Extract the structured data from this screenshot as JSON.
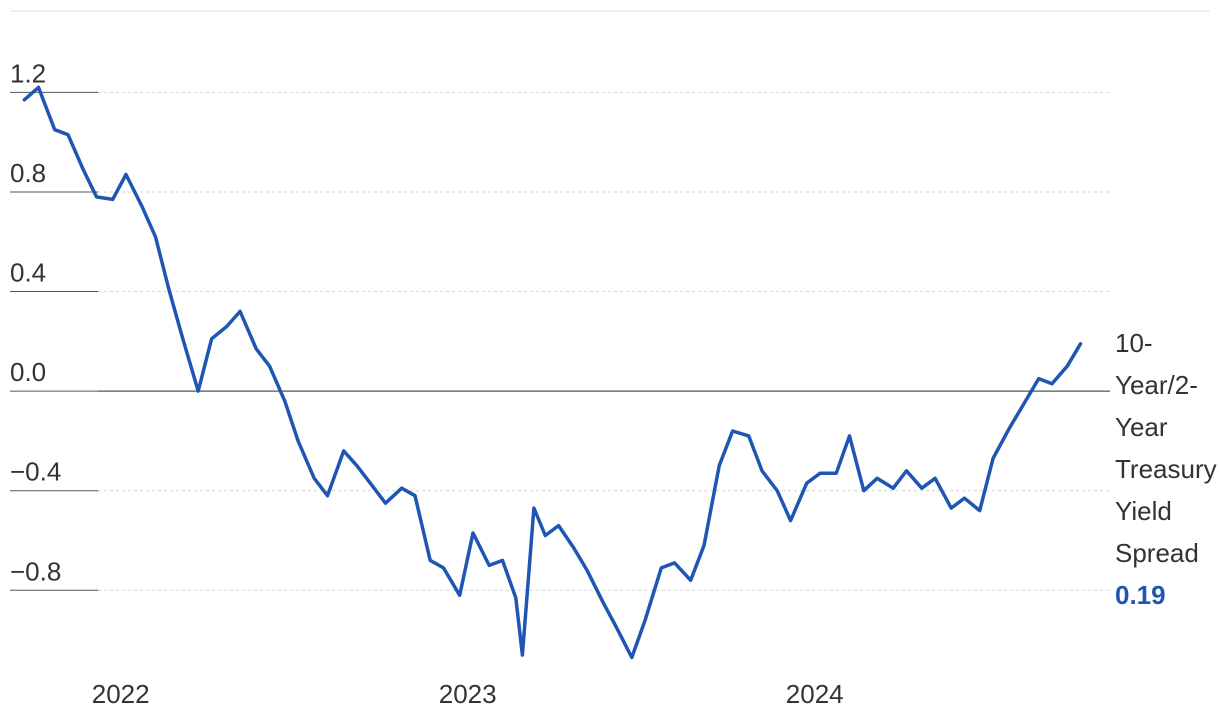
{
  "chart_data": {
    "type": "line",
    "title": "",
    "xlabel": "",
    "ylabel": "",
    "ylim": [
      -1.1,
      1.35
    ],
    "xlim": [
      "2021-09-15",
      "2024-11-15"
    ],
    "grid": true,
    "y_ticks": [
      {
        "value": 1.2,
        "label": "1.2"
      },
      {
        "value": 0.8,
        "label": "0.8"
      },
      {
        "value": 0.4,
        "label": "0.4"
      },
      {
        "value": 0.0,
        "label": "0.0"
      },
      {
        "value": -0.4,
        "label": "−0.4"
      },
      {
        "value": -0.8,
        "label": "−0.8"
      }
    ],
    "x_ticks": [
      {
        "value": "2022-01-01",
        "label": "2022"
      },
      {
        "value": "2023-01-01",
        "label": "2023"
      },
      {
        "value": "2024-01-01",
        "label": "2024"
      }
    ],
    "series": [
      {
        "name": "10-Year/2-Year Treasury Yield Spread",
        "label_lines": [
          "10-",
          "Year/2-",
          "Year",
          "Treasury",
          "Yield",
          "Spread"
        ],
        "last_value_label": "0.19",
        "color": "#1f56b3",
        "x": [
          "2021-09-30",
          "2021-10-15",
          "2021-11-01",
          "2021-11-15",
          "2021-12-01",
          "2021-12-15",
          "2022-01-01",
          "2022-01-15",
          "2022-02-01",
          "2022-02-15",
          "2022-03-01",
          "2022-03-15",
          "2022-04-01",
          "2022-04-15",
          "2022-05-01",
          "2022-05-15",
          "2022-06-01",
          "2022-06-15",
          "2022-07-01",
          "2022-07-15",
          "2022-08-01",
          "2022-08-15",
          "2022-09-01",
          "2022-09-15",
          "2022-10-01",
          "2022-10-15",
          "2022-11-01",
          "2022-11-15",
          "2022-12-01",
          "2022-12-15",
          "2023-01-01",
          "2023-01-15",
          "2023-02-01",
          "2023-02-15",
          "2023-03-01",
          "2023-03-08",
          "2023-03-20",
          "2023-04-01",
          "2023-04-15",
          "2023-05-01",
          "2023-05-15",
          "2023-06-01",
          "2023-06-15",
          "2023-07-01",
          "2023-07-15",
          "2023-08-01",
          "2023-08-15",
          "2023-09-01",
          "2023-09-15",
          "2023-10-01",
          "2023-10-15",
          "2023-11-01",
          "2023-11-15",
          "2023-12-01",
          "2023-12-15",
          "2024-01-01",
          "2024-01-15",
          "2024-02-01",
          "2024-02-15",
          "2024-03-01",
          "2024-03-15",
          "2024-04-01",
          "2024-04-15",
          "2024-05-01",
          "2024-05-15",
          "2024-06-01",
          "2024-06-15",
          "2024-07-01",
          "2024-07-15",
          "2024-08-01",
          "2024-08-15",
          "2024-09-01",
          "2024-09-15",
          "2024-10-01",
          "2024-10-15"
        ],
        "values": [
          1.17,
          1.22,
          1.05,
          1.03,
          0.89,
          0.78,
          0.77,
          0.87,
          0.74,
          0.62,
          0.41,
          0.22,
          0.0,
          0.21,
          0.26,
          0.32,
          0.17,
          0.1,
          -0.04,
          -0.2,
          -0.35,
          -0.42,
          -0.24,
          -0.3,
          -0.38,
          -0.45,
          -0.39,
          -0.42,
          -0.68,
          -0.71,
          -0.82,
          -0.57,
          -0.7,
          -0.68,
          -0.83,
          -1.06,
          -0.47,
          -0.58,
          -0.54,
          -0.63,
          -0.72,
          -0.85,
          -0.95,
          -1.07,
          -0.92,
          -0.71,
          -0.69,
          -0.76,
          -0.62,
          -0.3,
          -0.16,
          -0.18,
          -0.32,
          -0.4,
          -0.52,
          -0.37,
          -0.33,
          -0.33,
          -0.18,
          -0.4,
          -0.35,
          -0.39,
          -0.32,
          -0.39,
          -0.35,
          -0.47,
          -0.43,
          -0.48,
          -0.27,
          -0.15,
          -0.06,
          0.05,
          0.03,
          0.1,
          0.19
        ]
      }
    ]
  }
}
